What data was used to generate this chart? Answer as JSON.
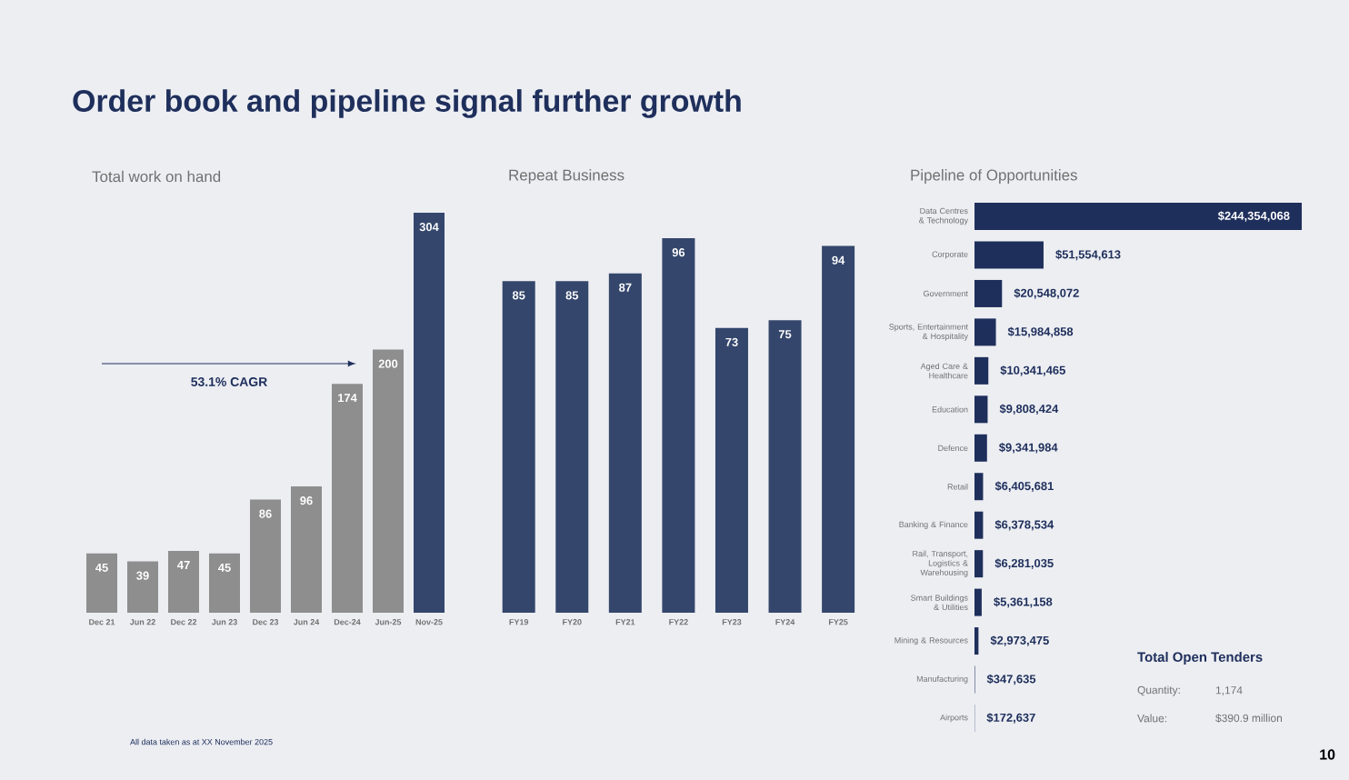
{
  "chart_data": [
    {
      "type": "bar",
      "title": "Total work on hand",
      "categories": [
        "Dec 21",
        "Jun 22",
        "Dec 22",
        "Jun 23",
        "Dec 23",
        "Jun 24",
        "Dec-24",
        "Jun-25",
        "Nov-25"
      ],
      "values": [
        45,
        39,
        47,
        45,
        86,
        96,
        174,
        200,
        304
      ],
      "colors": [
        "#8e8e8e",
        "#8e8e8e",
        "#8e8e8e",
        "#8e8e8e",
        "#8e8e8e",
        "#8e8e8e",
        "#8e8e8e",
        "#8e8e8e",
        "#34466b"
      ],
      "data_labels": true,
      "annotations": [
        "Order book and pipeline signal further growth",
        "53.1% CAGR",
        "All data taken as at XX November 2025",
        "10"
      ]
    },
    {
      "type": "bar",
      "title": "Repeat Business",
      "categories": [
        "FY19",
        "FY20",
        "FY21",
        "FY22",
        "FY23",
        "FY24",
        "FY25"
      ],
      "values": [
        85,
        85,
        87,
        96,
        73,
        75,
        94
      ],
      "color": "#34466b",
      "data_labels": true
    },
    {
      "type": "bar",
      "orientation": "horizontal",
      "title": "Pipeline of Opportunities",
      "categories": [
        "Data Centres & Technology",
        "Corporate",
        "Government",
        "Sports, Entertainment & Hospitality",
        "Aged Care & Healthcare",
        "Education",
        "Defence",
        "Retail",
        "Banking & Finance",
        "Rail, Transport, Logistics & Warehousing",
        "Smart Buildings & Utilities",
        "Mining & Resources",
        "Manufacturing",
        "Airports"
      ],
      "values": [
        244354068,
        51554613,
        20548072,
        15984858,
        10341465,
        9808424,
        9341984,
        6405681,
        6378534,
        6281035,
        5361158,
        2973475,
        347635,
        172637
      ],
      "value_labels": [
        "$244,354,068",
        "$51,554,613",
        "$20,548,072",
        "$15,984,858",
        "$10,341,465",
        "$9,808,424",
        "$9,341,984",
        "$6,405,681",
        "$6,378,534",
        "$6,281,035",
        "$5,361,158",
        "$2,973,475",
        "$347,635",
        "$172,637"
      ],
      "color": "#1f2f5c"
    },
    {
      "type": "other",
      "title": "Total Open Tenders",
      "annotations": [
        "Quantity:",
        "1,174",
        "Value:",
        "$390.9 million"
      ]
    }
  ]
}
